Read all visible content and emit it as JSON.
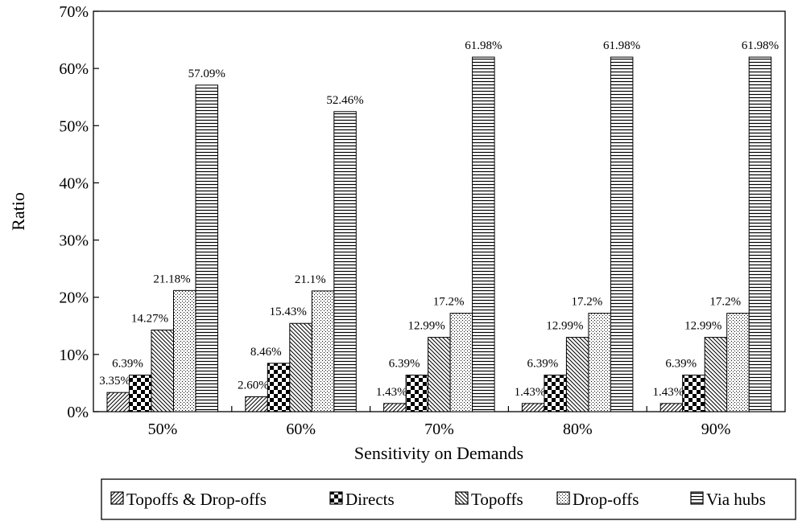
{
  "chart_data": {
    "type": "bar",
    "title": "",
    "xlabel": "Sensitivity on Demands",
    "ylabel": "Ratio",
    "ylim": [
      0,
      70
    ],
    "yticks": [
      "0%",
      "10%",
      "20%",
      "30%",
      "40%",
      "50%",
      "60%",
      "70%"
    ],
    "categories": [
      "50%",
      "60%",
      "70%",
      "80%",
      "90%"
    ],
    "grid": false,
    "legend_position": "bottom",
    "series": [
      {
        "name": "Topoffs & Drop-offs",
        "pattern": "diagonal-up",
        "values": [
          3.35,
          2.6,
          1.43,
          1.43,
          1.43
        ],
        "labels": [
          "3.35%",
          "2.60%",
          "1.43%",
          "1.43%",
          "1.43%"
        ]
      },
      {
        "name": "Directs",
        "pattern": "checkerboard",
        "values": [
          6.39,
          8.46,
          6.39,
          6.39,
          6.39
        ],
        "labels": [
          "6.39%",
          "8.46%",
          "6.39%",
          "6.39%",
          "6.39%"
        ]
      },
      {
        "name": "Topoffs",
        "pattern": "diagonal-down",
        "values": [
          14.27,
          15.43,
          12.99,
          12.99,
          12.99
        ],
        "labels": [
          "14.27%",
          "15.43%",
          "12.99%",
          "12.99%",
          "12.99%"
        ]
      },
      {
        "name": "Drop-offs",
        "pattern": "dots",
        "values": [
          21.18,
          21.1,
          17.2,
          17.2,
          17.2
        ],
        "labels": [
          "21.18%",
          "21.1%",
          "17.2%",
          "17.2%",
          "17.2%"
        ]
      },
      {
        "name": "Via hubs",
        "pattern": "horizontal",
        "values": [
          57.09,
          52.46,
          61.98,
          61.98,
          61.98
        ],
        "labels": [
          "57.09%",
          "52.46%",
          "61.98%",
          "61.98%",
          "61.98%"
        ]
      }
    ],
    "colors": {
      "stroke": "#000000",
      "fill": "#ffffff"
    }
  }
}
